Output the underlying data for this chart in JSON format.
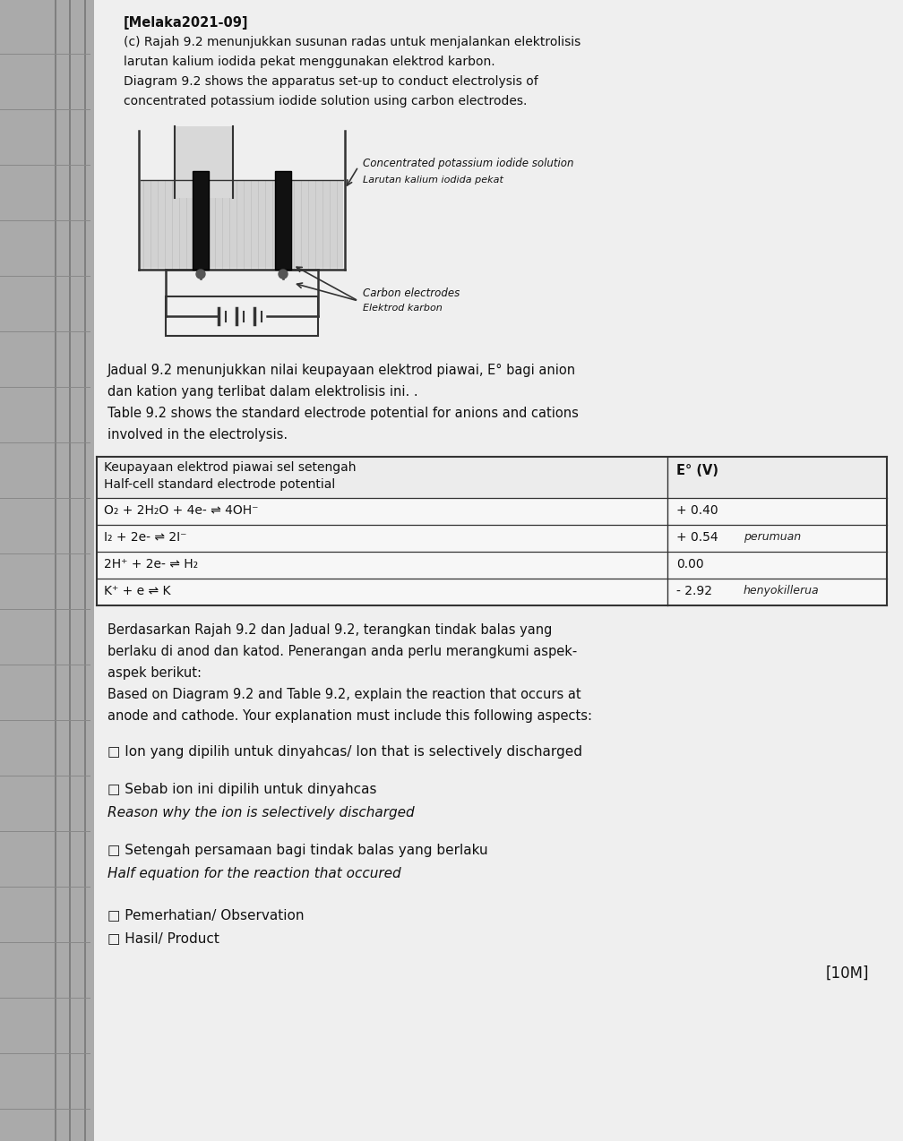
{
  "bg_color": "#b8b8b8",
  "page_bg": "#e8e8e8",
  "spine_color": "#888888",
  "header": "[Melaka2021-09]",
  "para1_line1": "(c) Rajah 9.2 menunjukkan susunan radas untuk menjalankan elektrolisis",
  "para1_line2": "larutan kalium iodida pekat menggunakan elektrod karbon.",
  "para1_line3": "Diagram 9.2 shows the apparatus set-up to conduct electrolysis of",
  "para1_line4": "concentrated potassium iodide solution using carbon electrodes.",
  "label1_eng": "Concentrated potassium iodide solution",
  "label1_malay": "Larutan kalium iodida pekat",
  "label2_eng": "Carbon electrodes",
  "label2_malay": "Elektrod karbon",
  "para2_line1": "Jadual 9.2 menunjukkan nilai keupayaan elektrod piawai, E° bagi anion",
  "para2_line2": "dan kation yang terlibat dalam elektrolisis ini. .",
  "para2_line3": "Table 9.2 shows the standard electrode potential for anions and cations",
  "para2_line4": "involved in the electrolysis.",
  "tbl_h1": "Keupayaan elektrod piawai sel setengah",
  "tbl_h2": "Half-cell standard electrode potential",
  "tbl_hcol2": "E° (V)",
  "tbl_r1c1": "O₂ + 2H₂O + 4e- ⇌ 4OH⁻",
  "tbl_r1c2": "+ 0.40",
  "tbl_r1hw": "",
  "tbl_r2c1": "I₂ + 2e- ⇌ 2I⁻",
  "tbl_r2c2": "+ 0.54",
  "tbl_r2hw": "perumuan",
  "tbl_r3c1": "2H⁺ + 2e- ⇌ H₂",
  "tbl_r3c2": "0.00",
  "tbl_r3hw": "",
  "tbl_r4c1": "K⁺ + e ⇌ K",
  "tbl_r4c2": "- 2.92",
  "tbl_r4hw": "henyokillerua",
  "para3_line1": "Berdasarkan Rajah 9.2 dan Jadual 9.2, terangkan tindak balas yang",
  "para3_line2": "berlaku di anod dan katod. Penerangan anda perlu merangkumi aspek-",
  "para3_line3": "aspek berikut:",
  "para3_line4": "Based on Diagram 9.2 and Table 9.2, explain the reaction that occurs at",
  "para3_line5": "anode and cathode. Your explanation must include this following aspects:",
  "b1": "□ Ion yang dipilih untuk dinyahcas/ Ion that is selectively discharged",
  "b2a": "□ Sebab ion ini dipilih untuk dinyahcas",
  "b2b": "Reason why the ion is selectively discharged",
  "b3a": "□ Setengah persamaan bagi tindak balas yang berlaku",
  "b3b": "Half equation for the reaction that occured",
  "b4": "□ Pemerhatian/ Observation",
  "b5": "□ Hasil/ Product",
  "marks": "[10M]",
  "text_color": "#111111",
  "line_color": "#333333"
}
